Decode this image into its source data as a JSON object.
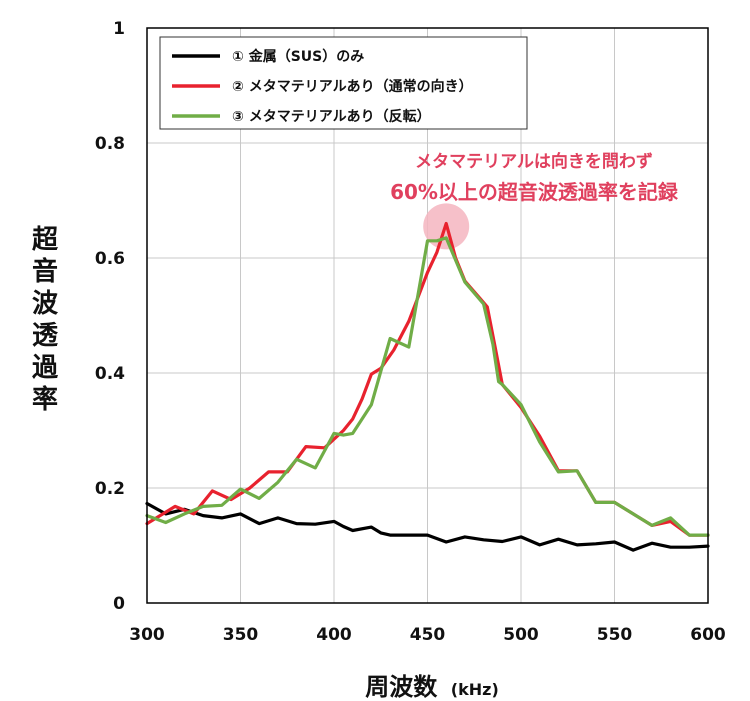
{
  "chart_data": {
    "type": "line",
    "title": "",
    "xlabel": "周波数",
    "xlabel_unit": "(kHz)",
    "ylabel": "超音波透過率",
    "xlim": [
      300,
      600
    ],
    "ylim": [
      0,
      1
    ],
    "x_ticks": [
      300,
      350,
      400,
      450,
      500,
      550,
      600
    ],
    "y_ticks": [
      0,
      0.2,
      0.4,
      0.6,
      0.8,
      1
    ],
    "y_tick_labels": [
      "0",
      "0.2",
      "0.4",
      "0.6",
      "0.8",
      "1"
    ],
    "grid": true,
    "legend_position": "top-left",
    "series": [
      {
        "name": "① 金属（SUS）のみ",
        "color": "#000000",
        "x": [
          300,
          310,
          320,
          330,
          340,
          350,
          360,
          370,
          380,
          390,
          400,
          405,
          410,
          420,
          425,
          430,
          440,
          450,
          460,
          470,
          480,
          490,
          500,
          510,
          520,
          530,
          540,
          550,
          560,
          570,
          580,
          590,
          600
        ],
        "y": [
          0.173,
          0.155,
          0.163,
          0.152,
          0.148,
          0.155,
          0.138,
          0.148,
          0.138,
          0.137,
          0.142,
          0.133,
          0.126,
          0.132,
          0.122,
          0.118,
          0.118,
          0.118,
          0.106,
          0.115,
          0.11,
          0.107,
          0.115,
          0.101,
          0.111,
          0.101,
          0.103,
          0.106,
          0.092,
          0.104,
          0.097,
          0.097,
          0.099
        ]
      },
      {
        "name": "② メタマテリアルあり（通常の向き）",
        "color": "#e8222e",
        "x": [
          300,
          315,
          325,
          335,
          345,
          355,
          365,
          375,
          385,
          395,
          405,
          410,
          415,
          420,
          425,
          432,
          440,
          450,
          455,
          460,
          465,
          470,
          478,
          482,
          486,
          490,
          500,
          510,
          520,
          530,
          540,
          550,
          560,
          570,
          580,
          590,
          600
        ],
        "y": [
          0.138,
          0.168,
          0.155,
          0.195,
          0.18,
          0.2,
          0.228,
          0.228,
          0.272,
          0.27,
          0.3,
          0.32,
          0.355,
          0.398,
          0.408,
          0.44,
          0.49,
          0.575,
          0.61,
          0.66,
          0.6,
          0.56,
          0.53,
          0.515,
          0.448,
          0.38,
          0.34,
          0.29,
          0.23,
          0.23,
          0.175,
          0.175,
          0.155,
          0.135,
          0.142,
          0.118,
          0.118
        ]
      },
      {
        "name": "③ メタマテリアルあり（反転）",
        "color": "#70ad47",
        "x": [
          300,
          310,
          320,
          330,
          340,
          350,
          360,
          370,
          380,
          390,
          400,
          405,
          410,
          420,
          430,
          440,
          450,
          455,
          460,
          470,
          480,
          485,
          488,
          490,
          500,
          510,
          520,
          530,
          540,
          550,
          560,
          570,
          580,
          590,
          600
        ],
        "y": [
          0.152,
          0.14,
          0.155,
          0.168,
          0.17,
          0.198,
          0.182,
          0.21,
          0.25,
          0.235,
          0.295,
          0.292,
          0.295,
          0.345,
          0.46,
          0.445,
          0.63,
          0.63,
          0.635,
          0.558,
          0.52,
          0.45,
          0.385,
          0.38,
          0.345,
          0.28,
          0.228,
          0.23,
          0.175,
          0.175,
          0.155,
          0.135,
          0.148,
          0.118,
          0.118
        ]
      }
    ],
    "annotations": [
      {
        "text": "メタマテリアルは向きを問わず",
        "color": "#e0405e"
      },
      {
        "text": "60%以上の超音波透過率を記録",
        "color": "#e0405e"
      }
    ],
    "highlight": {
      "x": 460,
      "y": 0.655,
      "color": "#f4b5bf"
    }
  }
}
